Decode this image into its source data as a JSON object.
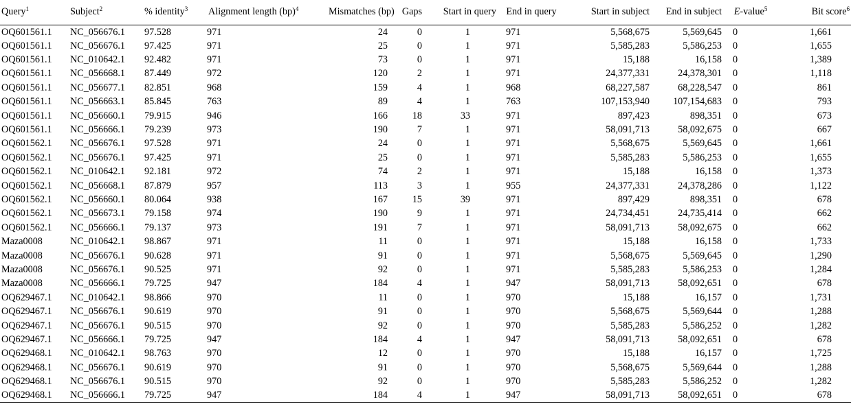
{
  "headers": [
    {
      "text": "Query",
      "sup": "1"
    },
    {
      "text": "Subject",
      "sup": "2"
    },
    {
      "text": "% identity",
      "sup": "3"
    },
    {
      "text": "Alignment length (bp)",
      "sup": "4"
    },
    {
      "text": "Mismatches (bp)",
      "sup": ""
    },
    {
      "text": "Gaps",
      "sup": ""
    },
    {
      "text": "Start in query",
      "sup": ""
    },
    {
      "text": "End in query",
      "sup": ""
    },
    {
      "text": "Start in subject",
      "sup": ""
    },
    {
      "text": "End in subject",
      "sup": ""
    },
    {
      "text": "-value",
      "italic_prefix": "E",
      "sup": "5"
    },
    {
      "text": "Bit score",
      "sup": "6"
    }
  ],
  "rows": [
    [
      "OQ601561.1",
      "NC_056676.1",
      "97.528",
      "971",
      "24",
      "0",
      "1",
      "971",
      "5,568,675",
      "5,569,645",
      "0",
      "1,661"
    ],
    [
      "OQ601561.1",
      "NC_056676.1",
      "97.425",
      "971",
      "25",
      "0",
      "1",
      "971",
      "5,585,283",
      "5,586,253",
      "0",
      "1,655"
    ],
    [
      "OQ601561.1",
      "NC_010642.1",
      "92.482",
      "971",
      "73",
      "0",
      "1",
      "971",
      "15,188",
      "16,158",
      "0",
      "1,389"
    ],
    [
      "OQ601561.1",
      "NC_056668.1",
      "87.449",
      "972",
      "120",
      "2",
      "1",
      "971",
      "24,377,331",
      "24,378,301",
      "0",
      "1,118"
    ],
    [
      "OQ601561.1",
      "NC_056677.1",
      "82.851",
      "968",
      "159",
      "4",
      "1",
      "968",
      "68,227,587",
      "68,228,547",
      "0",
      "861"
    ],
    [
      "OQ601561.1",
      "NC_056663.1",
      "85.845",
      "763",
      "89",
      "4",
      "1",
      "763",
      "107,153,940",
      "107,154,683",
      "0",
      "793"
    ],
    [
      "OQ601561.1",
      "NC_056660.1",
      "79.915",
      "946",
      "166",
      "18",
      "33",
      "971",
      "897,423",
      "898,351",
      "0",
      "673"
    ],
    [
      "OQ601561.1",
      "NC_056666.1",
      "79.239",
      "973",
      "190",
      "7",
      "1",
      "971",
      "58,091,713",
      "58,092,675",
      "0",
      "667"
    ],
    [
      "OQ601562.1",
      "NC_056676.1",
      "97.528",
      "971",
      "24",
      "0",
      "1",
      "971",
      "5,568,675",
      "5,569,645",
      "0",
      "1,661"
    ],
    [
      "OQ601562.1",
      "NC_056676.1",
      "97.425",
      "971",
      "25",
      "0",
      "1",
      "971",
      "5,585,283",
      "5,586,253",
      "0",
      "1,655"
    ],
    [
      "OQ601562.1",
      "NC_010642.1",
      "92.181",
      "972",
      "74",
      "2",
      "1",
      "971",
      "15,188",
      "16,158",
      "0",
      "1,373"
    ],
    [
      "OQ601562.1",
      "NC_056668.1",
      "87.879",
      "957",
      "113",
      "3",
      "1",
      "955",
      "24,377,331",
      "24,378,286",
      "0",
      "1,122"
    ],
    [
      "OQ601562.1",
      "NC_056660.1",
      "80.064",
      "938",
      "167",
      "15",
      "39",
      "971",
      "897,429",
      "898,351",
      "0",
      "678"
    ],
    [
      "OQ601562.1",
      "NC_056673.1",
      "79.158",
      "974",
      "190",
      "9",
      "1",
      "971",
      "24,734,451",
      "24,735,414",
      "0",
      "662"
    ],
    [
      "OQ601562.1",
      "NC_056666.1",
      "79.137",
      "973",
      "191",
      "7",
      "1",
      "971",
      "58,091,713",
      "58,092,675",
      "0",
      "662"
    ],
    [
      "Maza0008",
      "NC_010642.1",
      "98.867",
      "971",
      "11",
      "0",
      "1",
      "971",
      "15,188",
      "16,158",
      "0",
      "1,733"
    ],
    [
      "Maza0008",
      "NC_056676.1",
      "90.628",
      "971",
      "91",
      "0",
      "1",
      "971",
      "5,568,675",
      "5,569,645",
      "0",
      "1,290"
    ],
    [
      "Maza0008",
      "NC_056676.1",
      "90.525",
      "971",
      "92",
      "0",
      "1",
      "971",
      "5,585,283",
      "5,586,253",
      "0",
      "1,284"
    ],
    [
      "Maza0008",
      "NC_056666.1",
      "79.725",
      "947",
      "184",
      "4",
      "1",
      "947",
      "58,091,713",
      "58,092,651",
      "0",
      "678"
    ],
    [
      "OQ629467.1",
      "NC_010642.1",
      "98.866",
      "970",
      "11",
      "0",
      "1",
      "970",
      "15,188",
      "16,157",
      "0",
      "1,731"
    ],
    [
      "OQ629467.1",
      "NC_056676.1",
      "90.619",
      "970",
      "91",
      "0",
      "1",
      "970",
      "5,568,675",
      "5,569,644",
      "0",
      "1,288"
    ],
    [
      "OQ629467.1",
      "NC_056676.1",
      "90.515",
      "970",
      "92",
      "0",
      "1",
      "970",
      "5,585,283",
      "5,586,252",
      "0",
      "1,282"
    ],
    [
      "OQ629467.1",
      "NC_056666.1",
      "79.725",
      "947",
      "184",
      "4",
      "1",
      "947",
      "58,091,713",
      "58,092,651",
      "0",
      "678"
    ],
    [
      "OQ629468.1",
      "NC_010642.1",
      "98.763",
      "970",
      "12",
      "0",
      "1",
      "970",
      "15,188",
      "16,157",
      "0",
      "1,725"
    ],
    [
      "OQ629468.1",
      "NC_056676.1",
      "90.619",
      "970",
      "91",
      "0",
      "1",
      "970",
      "5,568,675",
      "5,569,644",
      "0",
      "1,288"
    ],
    [
      "OQ629468.1",
      "NC_056676.1",
      "90.515",
      "970",
      "92",
      "0",
      "1",
      "970",
      "5,585,283",
      "5,586,252",
      "0",
      "1,282"
    ],
    [
      "OQ629468.1",
      "NC_056666.1",
      "79.725",
      "947",
      "184",
      "4",
      "1",
      "947",
      "58,091,713",
      "58,092,651",
      "0",
      "678"
    ]
  ]
}
